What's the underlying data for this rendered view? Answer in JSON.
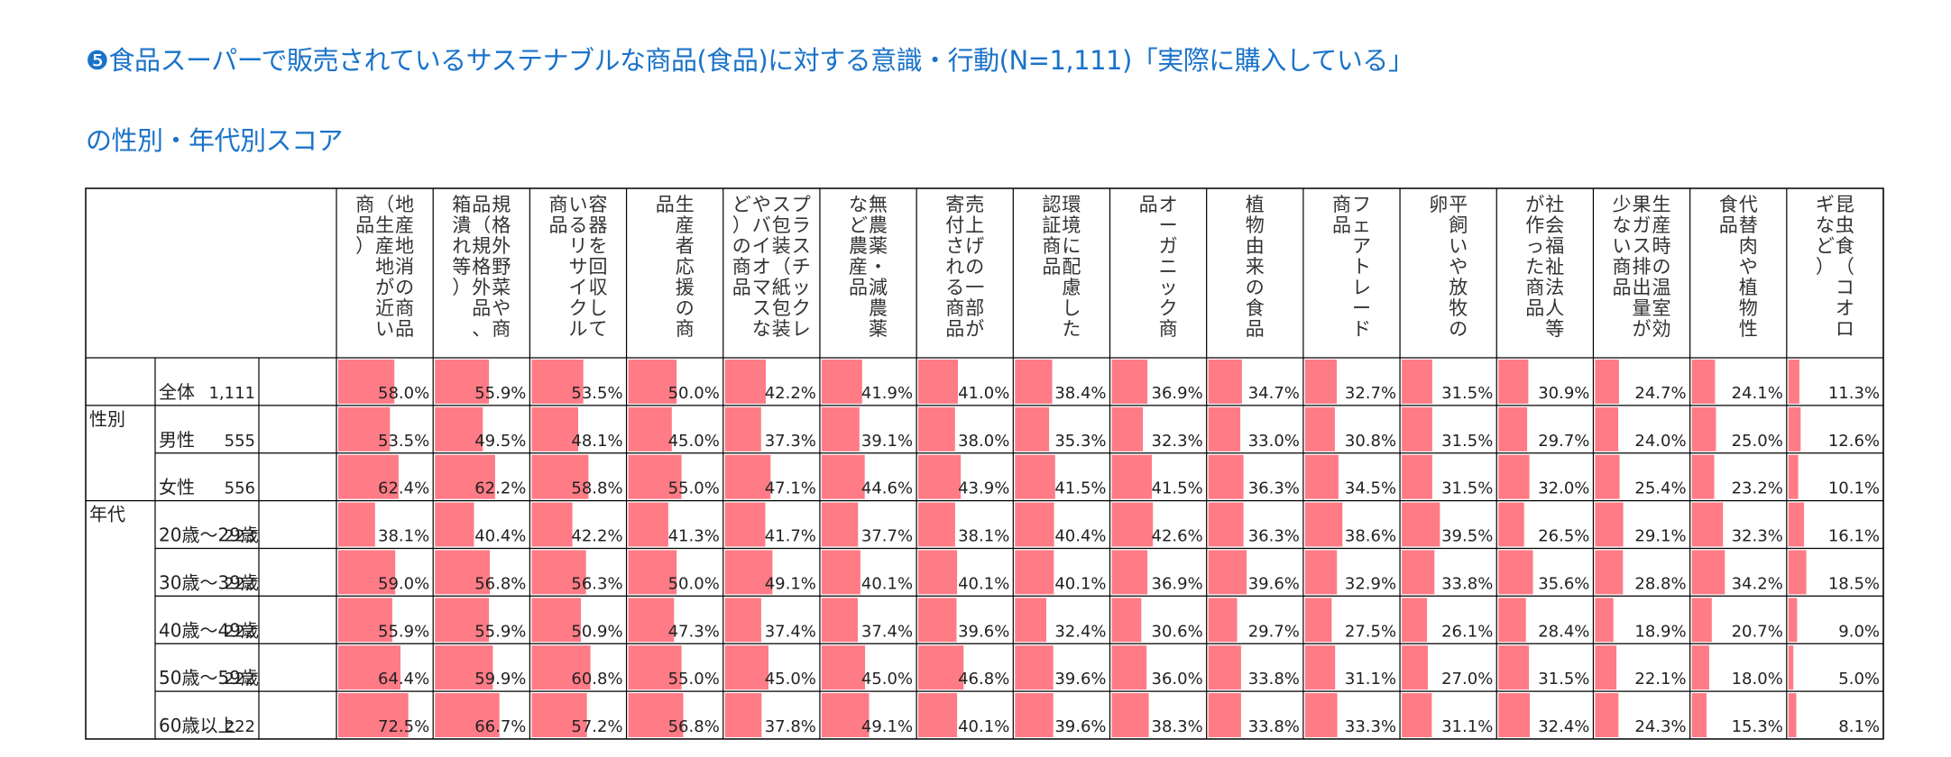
{
  "title": {
    "line1": "❺食品スーパーで販売されているサステナブルな商品(食品)に対する意識・行動(N=1,111)「実際に購入している」",
    "line2": "の性別・年代別スコア"
  },
  "chart_data": {
    "type": "table",
    "bar_color": "#ff7b86",
    "columns": [
      "地産地消の商品（生産地が近い商品）",
      "規格外野菜や商品（規格外品、箱潰れ等）",
      "容器を回収しているリサイクル商品",
      "生産者応援の商品",
      "プラスチックレス包装（紙包装やバイオマスなど）の商品",
      "無農薬・減農薬など農産品",
      "売上げの一部が寄付される商品",
      "環境に配慮した認証商品",
      "オーガニック商品",
      "植物由来の食品",
      "フェアトレード商品",
      "平飼いや放牧の卵",
      "社会福祉法人等が作った商品",
      "生産時の温室効果ガス排出量が少ない商品",
      "代替肉や植物性食品",
      "昆虫食（コオロギなど）"
    ],
    "groups": [
      {
        "label": "",
        "start": 0
      },
      {
        "label": "性別",
        "start": 1
      },
      {
        "label": "年代",
        "start": 3
      }
    ],
    "rows": [
      {
        "label": "全体",
        "n": "1,111",
        "values": [
          58.0,
          55.9,
          53.5,
          50.0,
          42.2,
          41.9,
          41.0,
          38.4,
          36.9,
          34.7,
          32.7,
          31.5,
          30.9,
          24.7,
          24.1,
          11.3
        ]
      },
      {
        "label": "男性",
        "n": "555",
        "values": [
          53.5,
          49.5,
          48.1,
          45.0,
          37.3,
          39.1,
          38.0,
          35.3,
          32.3,
          33.0,
          30.8,
          31.5,
          29.7,
          24.0,
          25.0,
          12.6
        ]
      },
      {
        "label": "女性",
        "n": "556",
        "values": [
          62.4,
          62.2,
          58.8,
          55.0,
          47.1,
          44.6,
          43.9,
          41.5,
          41.5,
          36.3,
          34.5,
          31.5,
          32.0,
          25.4,
          23.2,
          10.1
        ]
      },
      {
        "label": "20歳～29歳",
        "n": "223",
        "values": [
          38.1,
          40.4,
          42.2,
          41.3,
          41.7,
          37.7,
          38.1,
          40.4,
          42.6,
          36.3,
          38.6,
          39.5,
          26.5,
          29.1,
          32.3,
          16.1
        ]
      },
      {
        "label": "30歳～39歳",
        "n": "222",
        "values": [
          59.0,
          56.8,
          56.3,
          50.0,
          49.1,
          40.1,
          40.1,
          40.1,
          36.9,
          39.6,
          32.9,
          33.8,
          35.6,
          28.8,
          34.2,
          18.5
        ]
      },
      {
        "label": "40歳～49歳",
        "n": "222",
        "values": [
          55.9,
          55.9,
          50.9,
          47.3,
          37.4,
          37.4,
          39.6,
          32.4,
          30.6,
          29.7,
          27.5,
          26.1,
          28.4,
          18.9,
          20.7,
          9.0
        ]
      },
      {
        "label": "50歳～59歳",
        "n": "222",
        "values": [
          64.4,
          59.9,
          60.8,
          55.0,
          45.0,
          45.0,
          46.8,
          39.6,
          36.0,
          33.8,
          31.1,
          27.0,
          31.5,
          22.1,
          18.0,
          5.0
        ]
      },
      {
        "label": "60歳以上",
        "n": "222",
        "values": [
          72.5,
          66.7,
          57.2,
          56.8,
          37.8,
          49.1,
          40.1,
          39.6,
          38.3,
          33.8,
          33.3,
          31.1,
          32.4,
          24.3,
          15.3,
          8.1
        ]
      }
    ]
  }
}
